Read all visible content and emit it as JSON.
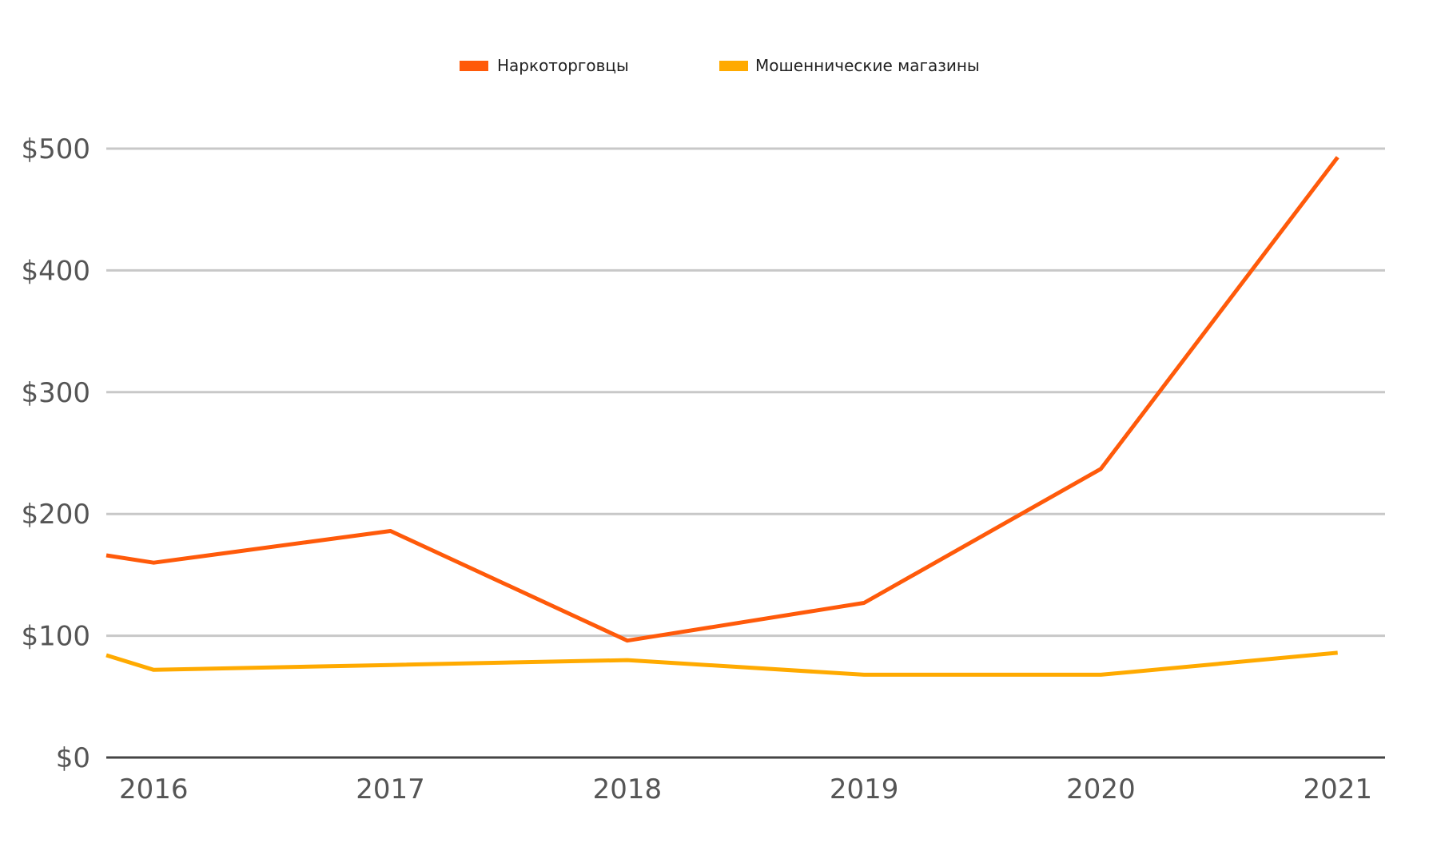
{
  "chart_data": {
    "type": "line",
    "x": [
      2015.8,
      2016,
      2017,
      2018,
      2019,
      2020,
      2021
    ],
    "x_ticks": [
      "2016",
      "2017",
      "2018",
      "2019",
      "2020",
      "2021"
    ],
    "xlim": [
      2015.8,
      2021.2
    ],
    "ylim": [
      0,
      500
    ],
    "y_ticks": [
      {
        "value": 0,
        "label": "$0"
      },
      {
        "value": 100,
        "label": "$100"
      },
      {
        "value": 200,
        "label": "$200"
      },
      {
        "value": 300,
        "label": "$300"
      },
      {
        "value": 400,
        "label": "$400"
      },
      {
        "value": 500,
        "label": "$500"
      }
    ],
    "grid": true,
    "legend_position": "top-center",
    "series": [
      {
        "name": "Наркоторговцы",
        "color": "#FF5A0A",
        "values": [
          166,
          160,
          186,
          96,
          127,
          237,
          493
        ]
      },
      {
        "name": "Мошеннические магазины",
        "color": "#FFAA00",
        "values": [
          84,
          72,
          76,
          80,
          68,
          68,
          86
        ]
      }
    ]
  }
}
